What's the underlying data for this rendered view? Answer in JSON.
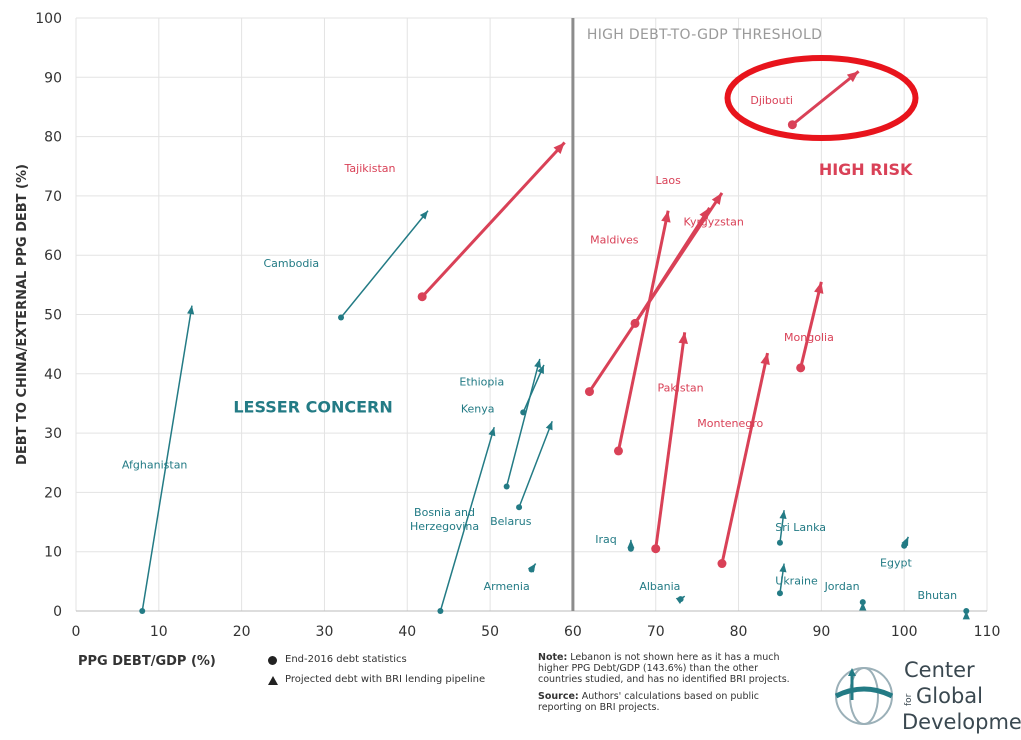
{
  "chart_data": {
    "type": "scatter",
    "xlabel": "PPG DEBT/GDP (%)",
    "ylabel": "DEBT TO CHINA/EXTERNAL PPG DEBT (%)",
    "xlim": [
      0,
      110
    ],
    "ylim": [
      0,
      100
    ],
    "x_ticks": [
      0,
      10,
      20,
      30,
      40,
      50,
      60,
      70,
      80,
      90,
      100,
      110
    ],
    "y_ticks": [
      0,
      10,
      20,
      30,
      40,
      50,
      60,
      70,
      80,
      90,
      100
    ],
    "threshold_x": 60,
    "threshold_label": "HIGH DEBT-TO-GDP THRESHOLD",
    "zone_labels": {
      "left": "LESSER CONCERN",
      "right": "HIGH RISK"
    },
    "colors": {
      "high_risk": "#d94157",
      "lesser": "#237b85",
      "threshold": "#8c8c8c",
      "highlight_circle": "#e8141c"
    },
    "points": [
      {
        "name": "Afghanistan",
        "x": 8.0,
        "y": 0,
        "x2": 14.0,
        "y2": 51.5,
        "group": "lesser"
      },
      {
        "name": "Cambodia",
        "x": 32.0,
        "y": 49.5,
        "x2": 42.5,
        "y2": 67.5,
        "group": "lesser"
      },
      {
        "name": "Tajikistan",
        "x": 41.8,
        "y": 53.0,
        "x2": 59.0,
        "y2": 79.0,
        "group": "high"
      },
      {
        "name": "Bosnia and Herzegovina",
        "x": 44.0,
        "y": 0,
        "x2": 50.5,
        "y2": 31.0,
        "group": "lesser"
      },
      {
        "name": "Ethiopia",
        "x": 54.0,
        "y": 33.5,
        "x2": 56.5,
        "y2": 41.5,
        "group": "lesser"
      },
      {
        "name": "Kenya",
        "x": 52.0,
        "y": 21.0,
        "x2": 56.0,
        "y2": 42.5,
        "group": "lesser"
      },
      {
        "name": "Belarus",
        "x": 53.5,
        "y": 17.5,
        "x2": 57.5,
        "y2": 32.0,
        "group": "lesser"
      },
      {
        "name": "Armenia",
        "x": 55.0,
        "y": 7.0,
        "x2": 55.5,
        "y2": 8.0,
        "group": "lesser"
      },
      {
        "name": "Iraq",
        "x": 67.0,
        "y": 10.5,
        "x2": 67.0,
        "y2": 12.0,
        "group": "lesser"
      },
      {
        "name": "Albania",
        "x": 73.0,
        "y": 2.0,
        "x2": 73.5,
        "y2": 2.5,
        "group": "lesser"
      },
      {
        "name": "Laos",
        "x": 62.0,
        "y": 37.0,
        "x2": 78.0,
        "y2": 70.5,
        "group": "high"
      },
      {
        "name": "Maldives",
        "x": 65.5,
        "y": 27.0,
        "x2": 71.5,
        "y2": 67.5,
        "group": "high"
      },
      {
        "name": "Kyrgyzstan",
        "x": 67.5,
        "y": 48.5,
        "x2": 76.5,
        "y2": 68.0,
        "group": "high"
      },
      {
        "name": "Pakistan",
        "x": 70.0,
        "y": 10.5,
        "x2": 73.5,
        "y2": 47.0,
        "group": "high"
      },
      {
        "name": "Montenegro",
        "x": 78.0,
        "y": 8.0,
        "x2": 83.5,
        "y2": 43.5,
        "group": "high"
      },
      {
        "name": "Mongolia",
        "x": 87.5,
        "y": 41.0,
        "x2": 90.0,
        "y2": 55.5,
        "group": "high"
      },
      {
        "name": "Djibouti",
        "x": 86.5,
        "y": 82.0,
        "x2": 94.5,
        "y2": 91.0,
        "group": "high"
      },
      {
        "name": "Sri Lanka",
        "x": 85.0,
        "y": 11.5,
        "x2": 85.5,
        "y2": 17.0,
        "group": "lesser"
      },
      {
        "name": "Ukraine",
        "x": 85.0,
        "y": 3.0,
        "x2": 85.5,
        "y2": 8.0,
        "group": "lesser"
      },
      {
        "name": "Egypt",
        "x": 100.0,
        "y": 11.0,
        "x2": 100.5,
        "y2": 12.5,
        "group": "lesser"
      },
      {
        "name": "Jordan",
        "x": 95.0,
        "y": 1.5,
        "x2": 95.0,
        "y2": 1.5,
        "group": "lesser"
      },
      {
        "name": "Bhutan",
        "x": 107.5,
        "y": 0,
        "x2": 107.5,
        "y2": 0,
        "group": "lesser"
      }
    ],
    "highlight": "Djibouti"
  },
  "legend": {
    "circle_label": "End-2016 debt statistics",
    "triangle_label": "Projected debt with BRI lending pipeline"
  },
  "note": {
    "note_label": "Note:",
    "note_text": "Lebanon is not shown here as it has a much higher PPG Debt/GDP (143.6%) than the other countries studied, and has no identified BRI projects.",
    "source_label": "Source:",
    "source_text": "Authors' calculations based on public reporting on BRI projects."
  },
  "logo": {
    "line1": "Center",
    "line2_small": "for",
    "line2": "Global",
    "line3": "Development"
  }
}
